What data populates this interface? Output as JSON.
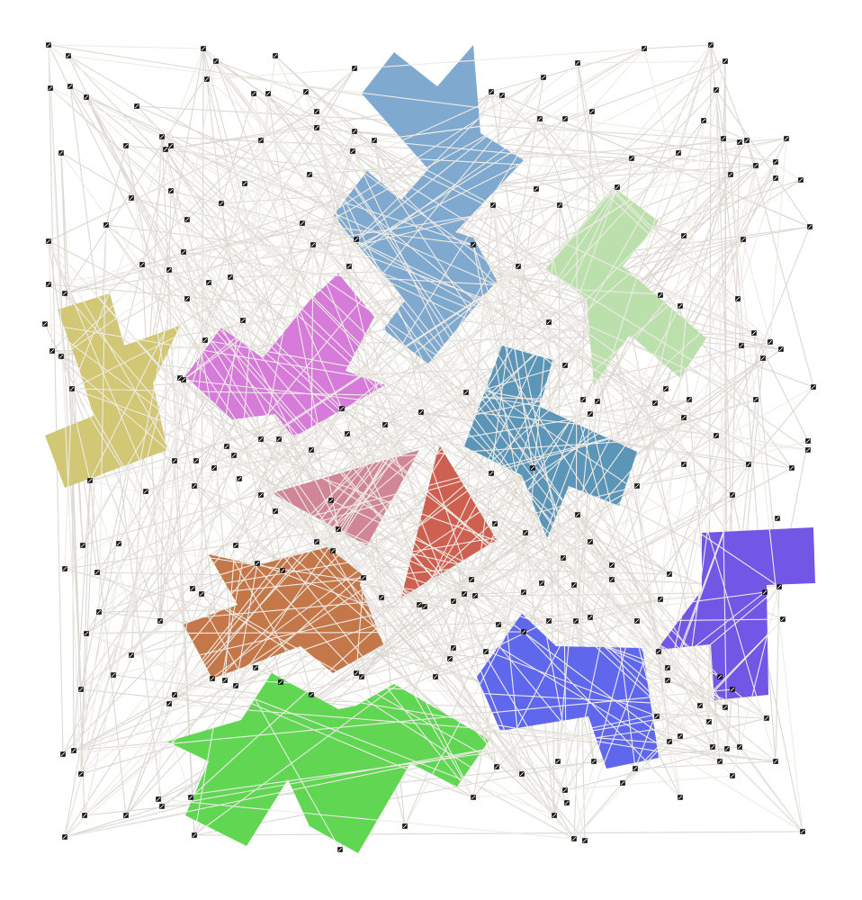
{
  "diagram": {
    "background_color": "#ffffff",
    "edge_color": "#dcd8d2",
    "node_color": "#111111",
    "shapes": [
      {
        "name": "shape-blue-top",
        "color": "#80a9d0"
      },
      {
        "name": "shape-light-green",
        "color": "#bbe0ac"
      },
      {
        "name": "shape-olive",
        "color": "#d2c774"
      },
      {
        "name": "shape-magenta",
        "color": "#d67bd9"
      },
      {
        "name": "shape-steel-blue",
        "color": "#5b95b8"
      },
      {
        "name": "shape-pink",
        "color": "#d08696"
      },
      {
        "name": "shape-red",
        "color": "#cd6050"
      },
      {
        "name": "shape-brown",
        "color": "#c4784a"
      },
      {
        "name": "shape-violet",
        "color": "#7257e6"
      },
      {
        "name": "shape-blue",
        "color": "#5f68ec"
      },
      {
        "name": "shape-green",
        "color": "#60d653"
      }
    ]
  }
}
